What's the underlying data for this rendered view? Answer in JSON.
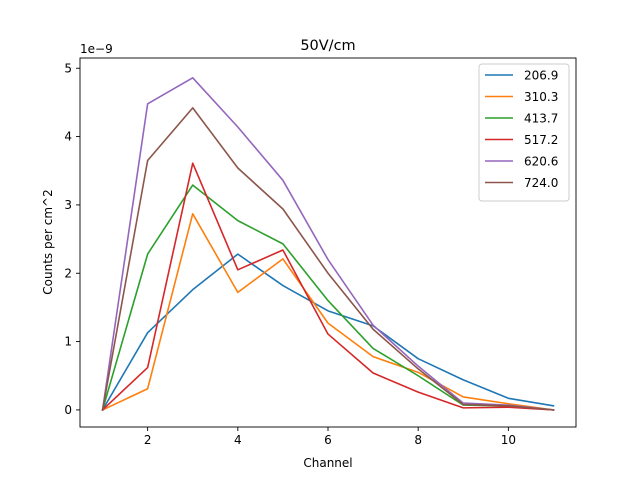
{
  "chart_data": {
    "type": "line",
    "title": "50V/cm",
    "xlabel": "Channel",
    "ylabel": "Counts per cm^2",
    "offset_text": "1e−9",
    "xlim": [
      0.5,
      11.5
    ],
    "ylim": [
      -0.25,
      5.15
    ],
    "xticks": [
      2,
      4,
      6,
      8,
      10
    ],
    "yticks": [
      0,
      1,
      2,
      3,
      4,
      5
    ],
    "grid": false,
    "legend_position": "top-right",
    "x": [
      1,
      2,
      3,
      4,
      5,
      6,
      7,
      8,
      9,
      10,
      11
    ],
    "series": [
      {
        "name": "206.9",
        "color": "#1f77b4",
        "values": [
          0,
          1.13,
          1.76,
          2.28,
          1.82,
          1.45,
          1.23,
          0.75,
          0.44,
          0.17,
          0.06
        ]
      },
      {
        "name": "310.3",
        "color": "#ff7f0e",
        "values": [
          0,
          0.31,
          2.87,
          1.72,
          2.21,
          1.27,
          0.78,
          0.55,
          0.19,
          0.09,
          0.0
        ]
      },
      {
        "name": "413.7",
        "color": "#2ca02c",
        "values": [
          0,
          2.28,
          3.29,
          2.77,
          2.43,
          1.6,
          0.9,
          0.5,
          0.07,
          0.06,
          0.0
        ]
      },
      {
        "name": "517.2",
        "color": "#d62728",
        "values": [
          0,
          0.62,
          3.61,
          2.05,
          2.34,
          1.11,
          0.54,
          0.26,
          0.03,
          0.04,
          0.0
        ]
      },
      {
        "name": "620.6",
        "color": "#9467bd",
        "values": [
          0,
          4.48,
          4.86,
          4.14,
          3.36,
          2.2,
          1.24,
          0.64,
          0.1,
          0.07,
          0.0
        ]
      },
      {
        "name": "724.0",
        "color": "#8c564b",
        "values": [
          0,
          3.65,
          4.42,
          3.54,
          2.94,
          2.0,
          1.18,
          0.6,
          0.08,
          0.06,
          0.0
        ]
      }
    ]
  }
}
